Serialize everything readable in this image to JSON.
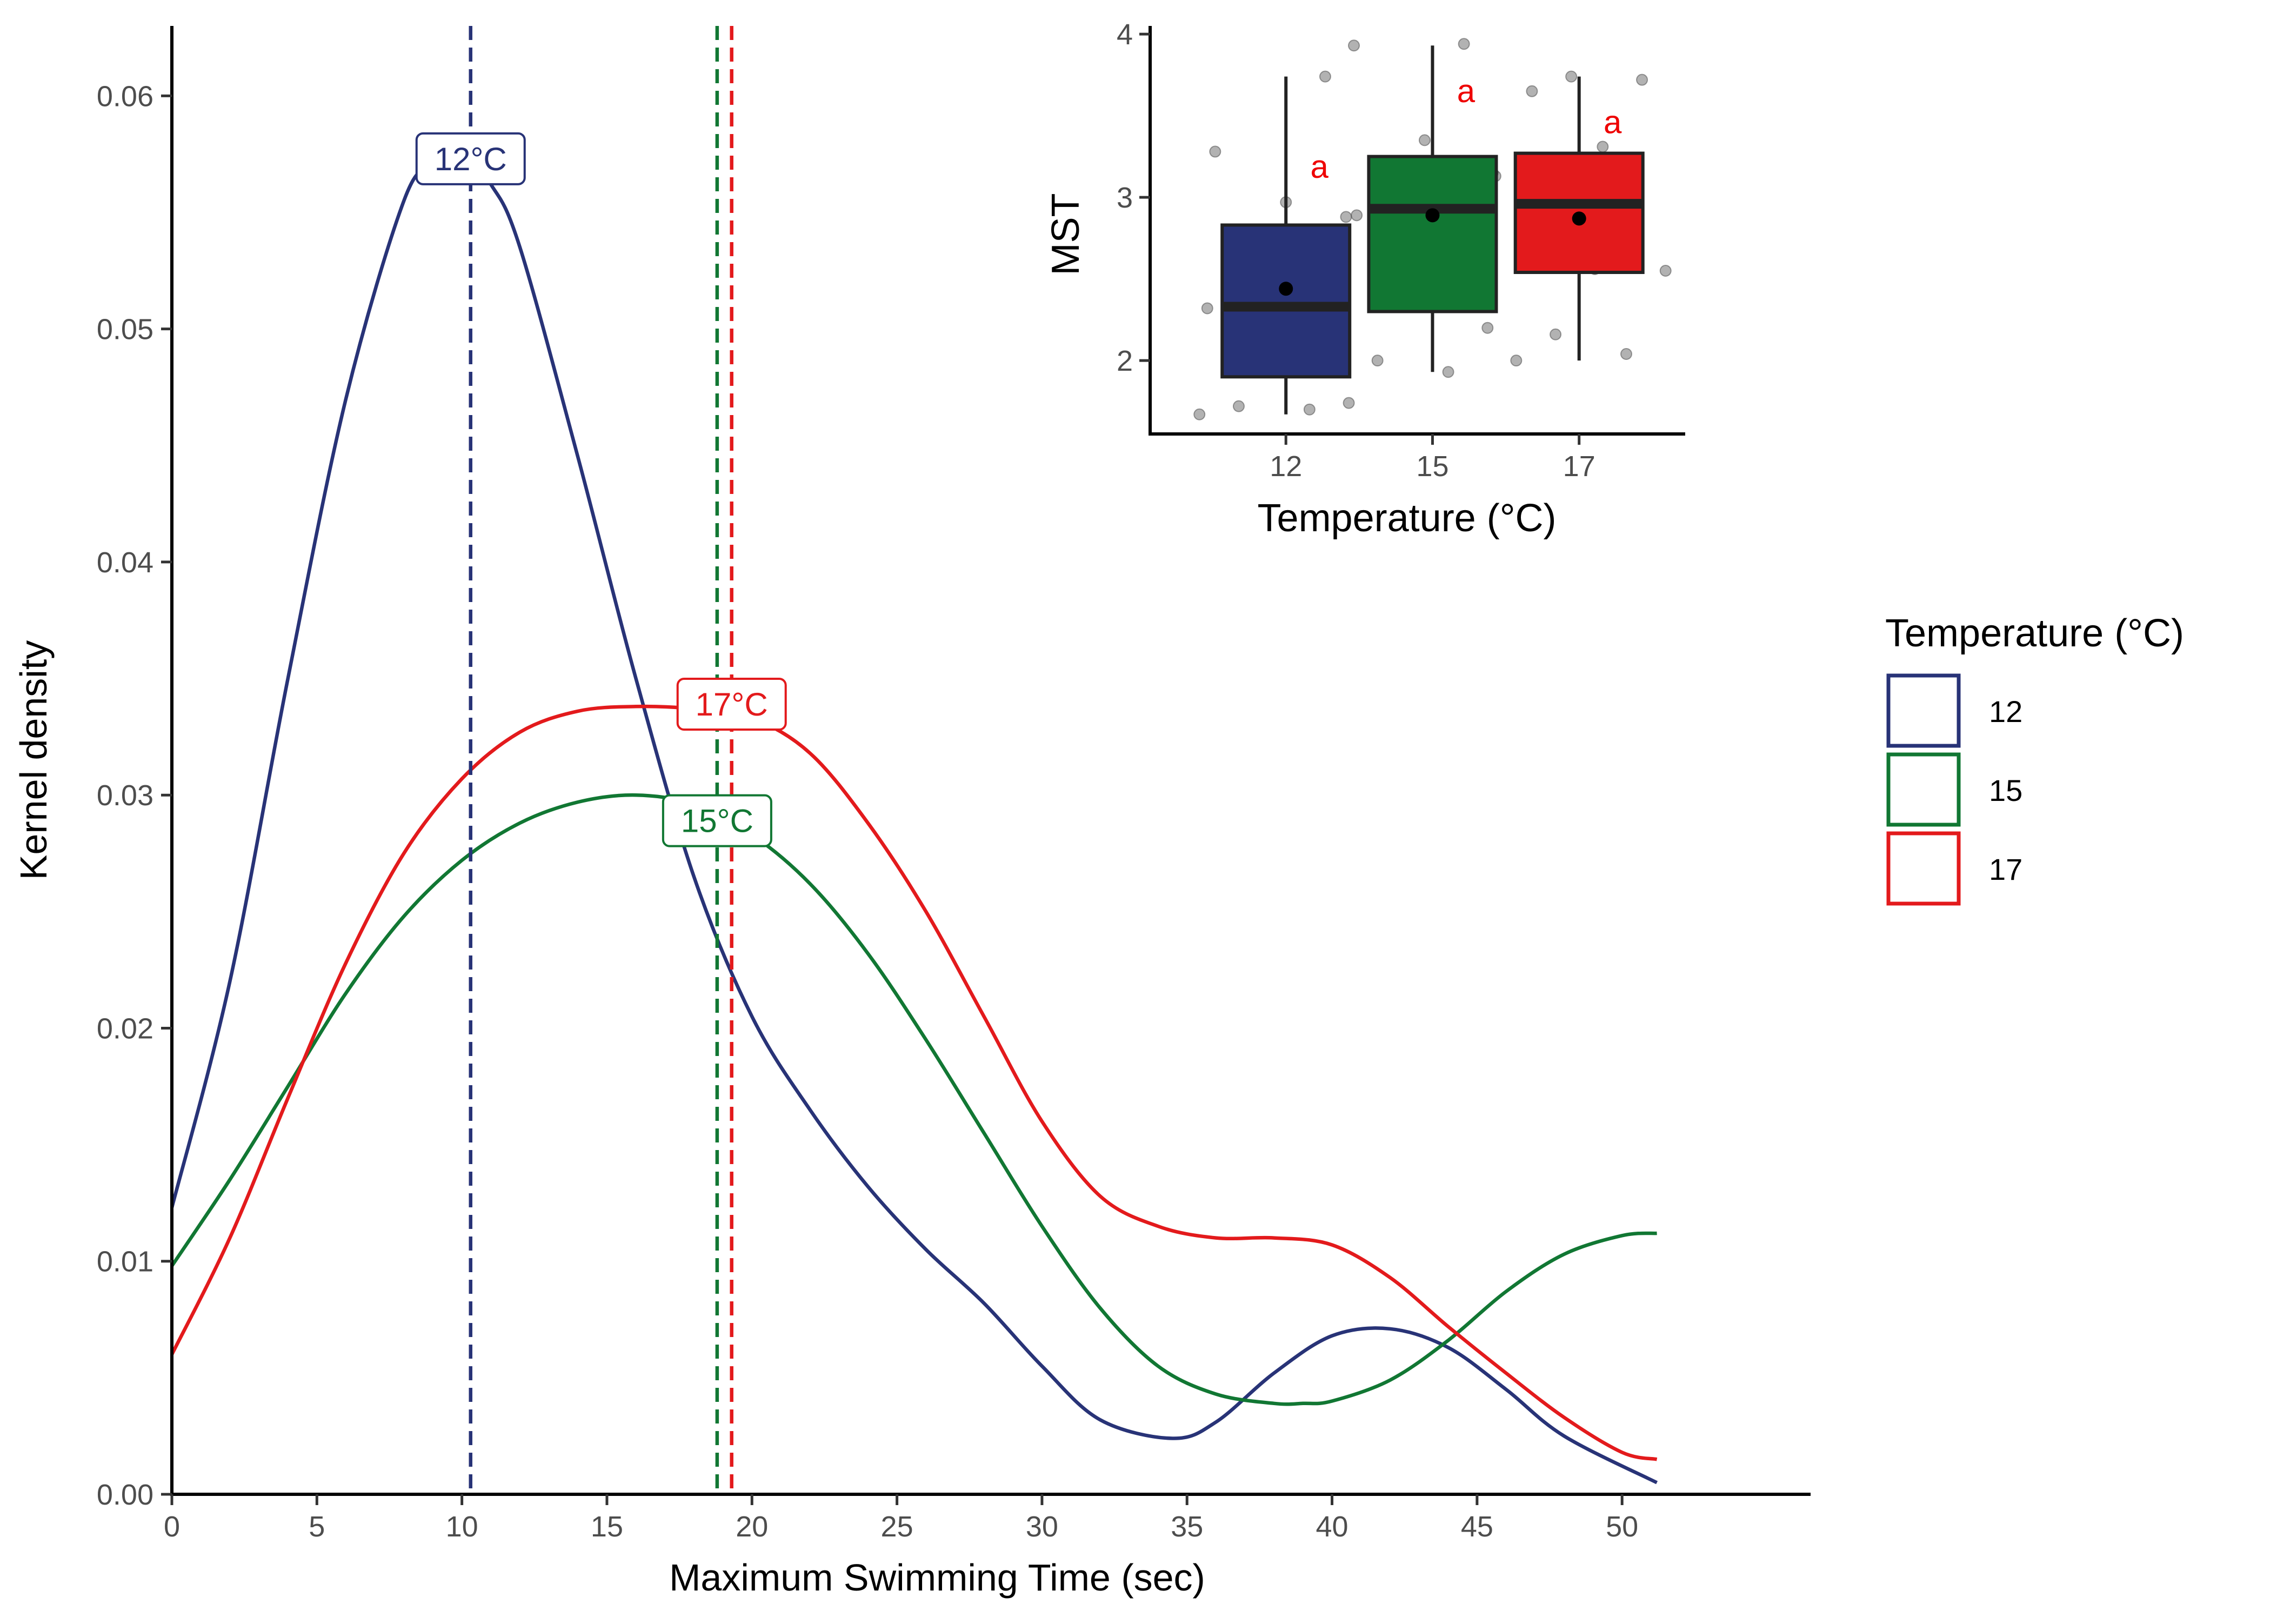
{
  "chart_data": [
    {
      "type": "area",
      "xlabel": "Maximum Swimming Time (sec)",
      "ylabel": "Kernel density",
      "xlim": [
        0,
        56.5
      ],
      "ylim": [
        0,
        0.063
      ],
      "x_ticks": [
        "0",
        "5",
        "10",
        "15",
        "20",
        "25",
        "30",
        "35",
        "40",
        "45",
        "50"
      ],
      "y_ticks": [
        "0.00",
        "0.01",
        "0.02",
        "0.03",
        "0.04",
        "0.05",
        "0.06"
      ],
      "legend": {
        "title": "Temperature (°C)",
        "position": "right",
        "entries": [
          "12",
          "15",
          "17"
        ]
      },
      "series": [
        {
          "name": "12",
          "color": "#283377",
          "x": [
            0,
            2,
            4,
            6,
            8,
            9,
            10,
            11,
            12,
            14,
            16,
            18,
            20,
            22,
            24,
            26,
            28,
            30,
            32,
            34.5,
            36,
            38,
            40,
            42,
            44,
            46,
            48,
            51.2
          ],
          "y": [
            0.0123,
            0.022,
            0.035,
            0.047,
            0.0555,
            0.057,
            0.0575,
            0.0562,
            0.0535,
            0.0445,
            0.035,
            0.0265,
            0.0205,
            0.0165,
            0.0132,
            0.0105,
            0.0082,
            0.0055,
            0.0032,
            0.0024,
            0.0031,
            0.0052,
            0.0068,
            0.0071,
            0.0063,
            0.0045,
            0.0025,
            0.0005
          ],
          "mean_line": 10.3,
          "mean_label": "12°C"
        },
        {
          "name": "15",
          "color": "#117733",
          "x": [
            0,
            2,
            4,
            6,
            8,
            10,
            12,
            14,
            16,
            18,
            20,
            22,
            24,
            26,
            28,
            30,
            32,
            34,
            36,
            38,
            39,
            40,
            42,
            44,
            46,
            48,
            50,
            51.2
          ],
          "y": [
            0.0098,
            0.0135,
            0.0175,
            0.0215,
            0.0248,
            0.0272,
            0.0288,
            0.0297,
            0.03,
            0.0296,
            0.0283,
            0.0262,
            0.0232,
            0.0195,
            0.0155,
            0.0115,
            0.008,
            0.0055,
            0.0043,
            0.0039,
            0.0039,
            0.004,
            0.0049,
            0.0066,
            0.0087,
            0.0103,
            0.0111,
            0.0112
          ],
          "mean_line": 18.8,
          "mean_label": "15°C"
        },
        {
          "name": "17",
          "color": "#e31a1c",
          "x": [
            0,
            2,
            4,
            6,
            8,
            10,
            12,
            14,
            16,
            18,
            20,
            22,
            24,
            26,
            28,
            30,
            32,
            34,
            36,
            38,
            40,
            42,
            44,
            46,
            48,
            50,
            51.2
          ],
          "y": [
            0.006,
            0.011,
            0.017,
            0.0228,
            0.0275,
            0.0307,
            0.0327,
            0.0336,
            0.0338,
            0.0337,
            0.0333,
            0.0318,
            0.0288,
            0.025,
            0.0205,
            0.016,
            0.0128,
            0.0115,
            0.011,
            0.011,
            0.0107,
            0.0093,
            0.0072,
            0.0052,
            0.0033,
            0.0018,
            0.0015
          ],
          "mean_line": 19.3,
          "mean_label": "17°C"
        }
      ]
    },
    {
      "type": "box",
      "xlabel": "Temperature (°C)",
      "ylabel": "MST",
      "categories": [
        "12",
        "15",
        "17"
      ],
      "ylim": [
        1.55,
        4.05
      ],
      "y_ticks": [
        "2",
        "3",
        "4"
      ],
      "boxes": [
        {
          "category": "12",
          "color": "#283377",
          "whisker_low": 1.67,
          "q1": 1.9,
          "median": 2.33,
          "q3": 2.83,
          "whisker_high": 3.74,
          "mean": 2.44,
          "letter": "a"
        },
        {
          "category": "15",
          "color": "#117733",
          "whisker_low": 1.93,
          "q1": 2.3,
          "median": 2.93,
          "q3": 3.25,
          "whisker_high": 3.93,
          "mean": 2.89,
          "letter": "a"
        },
        {
          "category": "17",
          "color": "#e31a1c",
          "whisker_low": 2.0,
          "q1": 2.54,
          "median": 2.96,
          "q3": 3.27,
          "whisker_high": 3.74,
          "mean": 2.87,
          "letter": "a"
        }
      ],
      "points": [
        {
          "category": "12",
          "values": [
            1.67,
            1.7,
            1.72,
            1.74,
            2.3,
            2.32,
            2.45,
            2.58,
            2.89,
            2.97,
            3.28,
            3.74
          ]
        },
        {
          "category": "15",
          "values": [
            1.93,
            2.0,
            2.2,
            2.42,
            2.88,
            2.92,
            3.08,
            3.13,
            3.35,
            3.93,
            3.94
          ]
        },
        {
          "category": "17",
          "values": [
            2.0,
            2.04,
            2.16,
            2.55,
            2.56,
            2.73,
            2.96,
            3.12,
            3.15,
            3.31,
            3.65,
            3.72,
            3.74
          ]
        }
      ]
    }
  ]
}
